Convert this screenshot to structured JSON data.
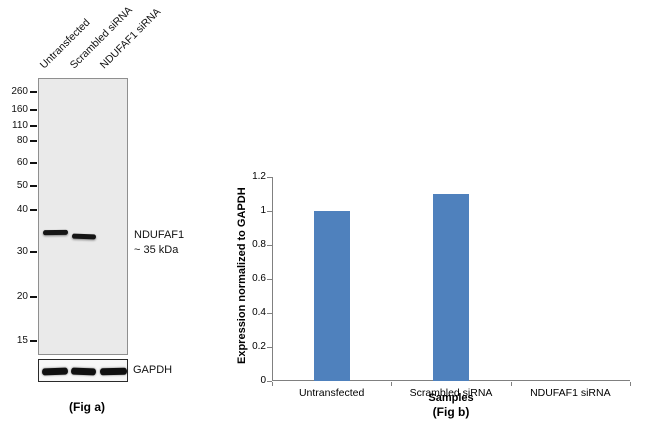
{
  "figure": {
    "fig_a": {
      "caption": "(Fig a)",
      "lane_labels": [
        "Untransfected",
        "Scrambled siRNA",
        "NDUFAF1 siRNA"
      ],
      "mw_markers": [
        "260",
        "160",
        "110",
        "80",
        "60",
        "50",
        "40",
        "30",
        "20",
        "15"
      ],
      "band_annotation": "NDUFAF1\n~ 35 kDa",
      "loading_control_label": "GAPDH",
      "gel_background": "#eaeaea",
      "band_color": "#161616"
    },
    "fig_b": {
      "caption": "(Fig b)"
    }
  },
  "chart_data": {
    "type": "bar",
    "categories": [
      "Untransfected",
      "Scrambled siRNA",
      "NDUFAF1 siRNA"
    ],
    "values": [
      1.0,
      1.1,
      0
    ],
    "title": "",
    "xlabel": "Samples",
    "ylabel": "Expression  normalized to GAPDH",
    "ylim": [
      0,
      1.2
    ],
    "yticks": [
      0,
      0.2,
      0.4,
      0.6,
      0.8,
      1,
      1.2
    ],
    "bar_color": "#4f81bd",
    "axis_color": "#808080",
    "grid": false,
    "legend": false
  }
}
